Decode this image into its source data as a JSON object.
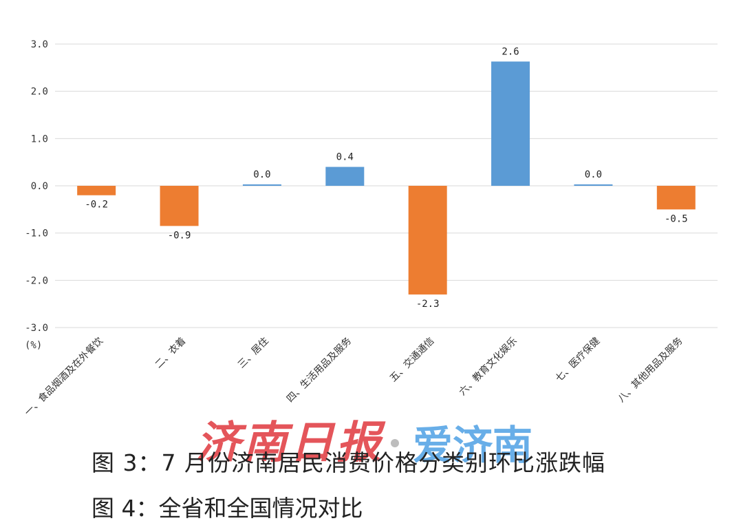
{
  "chart_data": {
    "type": "bar",
    "categories": [
      "一、食品烟酒及在外餐饮",
      "二、衣着",
      "三、居住",
      "四、生活用品及服务",
      "五、交通通信",
      "六、教育文化娱乐",
      "七、医疗保健",
      "八、其他用品及服务"
    ],
    "values": [
      -0.2,
      -0.85,
      0.03,
      0.4,
      -2.3,
      2.63,
      0.03,
      -0.5
    ],
    "data_labels": [
      "-0.2",
      "-0.9",
      "0.0",
      "0.4",
      "-2.3",
      "2.6",
      "0.0",
      "-0.5"
    ],
    "ylim": [
      -3.0,
      3.0
    ],
    "yticks": [
      "3.0",
      "2.0",
      "1.0",
      "0.0",
      "-1.0",
      "-2.0",
      "-3.0"
    ],
    "ylabel": "(%)",
    "grid": true,
    "colors": {
      "positive": "#5b9bd5",
      "negative": "#ed7d31",
      "grid": "#d9d9d9"
    }
  },
  "caption": "图 3：7 月份济南居民消费价格分类别环比涨跌幅",
  "caption_next_line": "图 4：全省和全国情况对比",
  "watermark": {
    "newspaper": "济南日报",
    "app": "爱济南"
  }
}
